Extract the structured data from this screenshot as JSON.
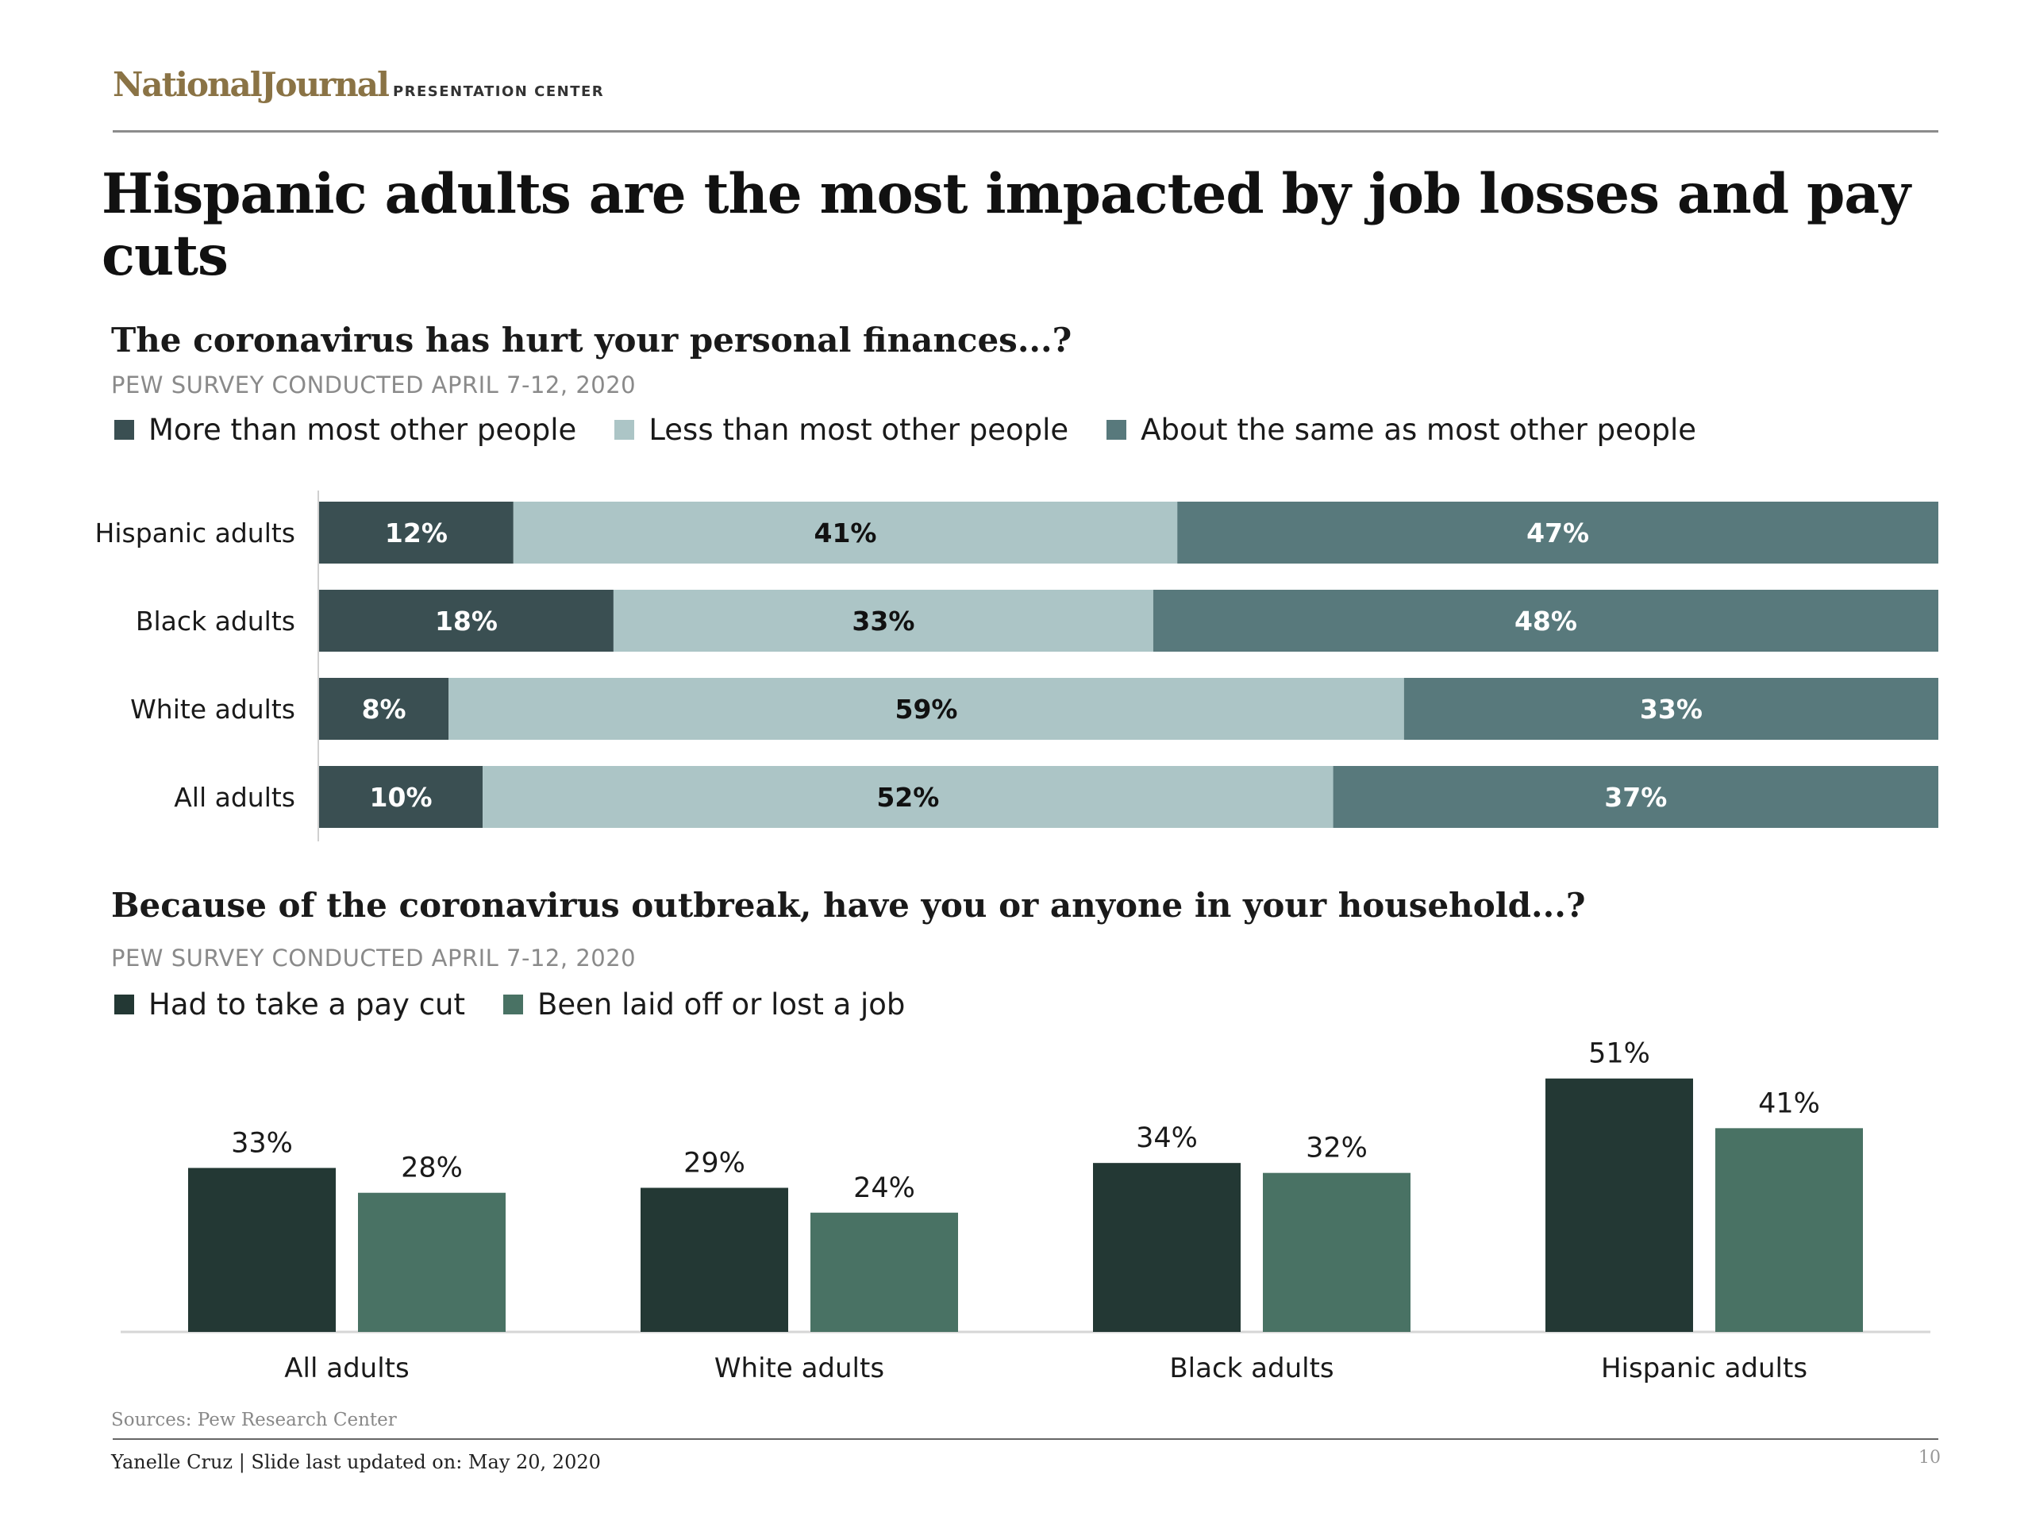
{
  "header": {
    "logo_main": "NationalJournal",
    "logo_sub": "PRESENTATION CENTER"
  },
  "title": "Hispanic adults are the most impacted by job losses and pay cuts",
  "chart_data": [
    {
      "type": "bar",
      "orientation": "horizontal",
      "stacked": true,
      "title": "The coronavirus has hurt your personal finances...?",
      "subtitle": "PEW SURVEY CONDUCTED APRIL 7-12, 2020",
      "categories": [
        "Hispanic adults",
        "Black adults",
        "White adults",
        "All adults"
      ],
      "series": [
        {
          "name": "More than most other people",
          "values": [
            12,
            18,
            8,
            10
          ],
          "labels": [
            "12%",
            "18%",
            "8%",
            "10%"
          ],
          "color": "#3a4f52"
        },
        {
          "name": "Less than most other people",
          "values": [
            41,
            33,
            59,
            52
          ],
          "labels": [
            "41%",
            "33%",
            "59%",
            "52%"
          ],
          "color": "#acc5c6"
        },
        {
          "name": "About the same as most other people",
          "values": [
            47,
            48,
            33,
            37
          ],
          "labels": [
            "47%",
            "48%",
            "33%",
            "37%"
          ],
          "color": "#58797c"
        }
      ],
      "legend_position": "top-left",
      "grid": false
    },
    {
      "type": "bar",
      "orientation": "vertical",
      "title": "Because of the coronavirus outbreak, have you or anyone in your household...?",
      "subtitle": "PEW SURVEY CONDUCTED APRIL 7-12, 2020",
      "categories": [
        "All adults",
        "White adults",
        "Black adults",
        "Hispanic adults"
      ],
      "series": [
        {
          "name": "Had to take a pay cut",
          "values": [
            33,
            29,
            34,
            51
          ],
          "labels": [
            "33%",
            "29%",
            "34%",
            "51%"
          ],
          "color": "#233834"
        },
        {
          "name": "Been laid off or lost a job",
          "values": [
            28,
            24,
            32,
            41
          ],
          "labels": [
            "28%",
            "24%",
            "32%",
            "41%"
          ],
          "color": "#497264"
        }
      ],
      "ylim": [
        0,
        55
      ],
      "legend_position": "top-left",
      "grid": false
    }
  ],
  "footer": {
    "sources": "Sources: Pew Research Center",
    "author_line": "Yanelle Cruz | Slide last updated on: May 20, 2020",
    "page_number": "10"
  }
}
